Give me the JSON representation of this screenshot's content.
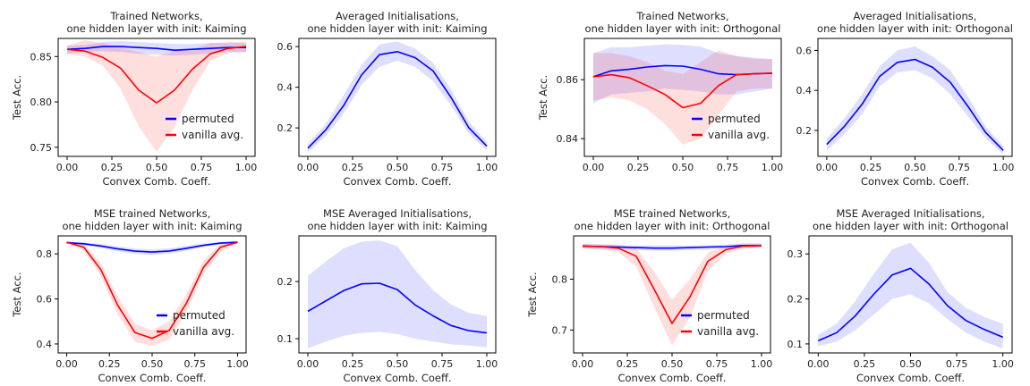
{
  "chart_data": [
    {
      "type": "line",
      "title": [
        "Trained Networks,",
        "one hidden layer with init: Kaiming"
      ],
      "xlabel": "Convex Comb. Coeff.",
      "ylabel": "Test Acc.",
      "xlim": [
        -0.05,
        1.05
      ],
      "ylim": [
        0.74,
        0.87
      ],
      "xticks": [
        0.0,
        0.25,
        0.5,
        0.75,
        1.0
      ],
      "xtick_labels": [
        "0.00",
        "0.25",
        "0.50",
        "0.75",
        "1.00"
      ],
      "yticks": [
        0.75,
        0.8,
        0.85
      ],
      "ytick_labels": [
        "0.75",
        "0.80",
        "0.85"
      ],
      "legend": "bottom-right",
      "series": [
        {
          "name": "permuted",
          "color": "#0000ff",
          "x": [
            0,
            0.1,
            0.2,
            0.3,
            0.4,
            0.5,
            0.6,
            0.7,
            0.8,
            0.9,
            1.0
          ],
          "y": [
            0.858,
            0.859,
            0.861,
            0.861,
            0.86,
            0.859,
            0.857,
            0.858,
            0.859,
            0.86,
            0.86
          ],
          "lower": [
            0.853,
            0.855,
            0.856,
            0.855,
            0.853,
            0.852,
            0.851,
            0.852,
            0.853,
            0.855,
            0.855
          ],
          "upper": [
            0.862,
            0.863,
            0.866,
            0.867,
            0.866,
            0.865,
            0.864,
            0.864,
            0.865,
            0.865,
            0.865
          ]
        },
        {
          "name": "vanilla avg.",
          "color": "#ff0000",
          "x": [
            0,
            0.1,
            0.2,
            0.3,
            0.4,
            0.5,
            0.6,
            0.7,
            0.8,
            0.9,
            1.0
          ],
          "y": [
            0.858,
            0.856,
            0.849,
            0.837,
            0.813,
            0.799,
            0.813,
            0.836,
            0.853,
            0.859,
            0.861
          ],
          "lower": [
            0.853,
            0.85,
            0.84,
            0.814,
            0.773,
            0.745,
            0.772,
            0.813,
            0.845,
            0.854,
            0.855
          ],
          "upper": [
            0.862,
            0.868,
            0.865,
            0.86,
            0.855,
            0.85,
            0.856,
            0.858,
            0.865,
            0.866,
            0.866
          ]
        }
      ]
    },
    {
      "type": "line",
      "title": [
        "Averaged Initialisations,",
        "one hidden layer  with init: Kaiming"
      ],
      "xlabel": "Convex Comb. Coeff.",
      "ylabel": "",
      "xlim": [
        -0.05,
        1.05
      ],
      "ylim": [
        0.06,
        0.64
      ],
      "xticks": [
        0.0,
        0.25,
        0.5,
        0.75,
        1.0
      ],
      "xtick_labels": [
        "0.00",
        "0.25",
        "0.50",
        "0.75",
        "1.00"
      ],
      "yticks": [
        0.2,
        0.4,
        0.6
      ],
      "ytick_labels": [
        "0.2",
        "0.4",
        "0.6"
      ],
      "legend": "none",
      "series": [
        {
          "color": "#0000ff",
          "x": [
            0,
            0.1,
            0.2,
            0.3,
            0.4,
            0.5,
            0.6,
            0.7,
            0.8,
            0.9,
            1.0
          ],
          "y": [
            0.1,
            0.19,
            0.31,
            0.46,
            0.56,
            0.575,
            0.545,
            0.48,
            0.35,
            0.2,
            0.11
          ],
          "lower": [
            0.08,
            0.16,
            0.27,
            0.41,
            0.5,
            0.53,
            0.5,
            0.43,
            0.31,
            0.17,
            0.09
          ],
          "upper": [
            0.12,
            0.22,
            0.36,
            0.51,
            0.61,
            0.625,
            0.59,
            0.52,
            0.39,
            0.23,
            0.13
          ]
        }
      ]
    },
    {
      "type": "line",
      "title": [
        "Trained Networks,",
        "one hidden layer with init: Orthogonal"
      ],
      "xlabel": "",
      "ylabel": "Test Acc.",
      "xlim": [
        -0.05,
        1.05
      ],
      "ylim": [
        0.834,
        0.874
      ],
      "xticks": [
        0.0,
        0.25,
        0.5,
        0.75,
        1.0
      ],
      "xtick_labels": [
        "0.00",
        "0.25",
        "0.50",
        "0.75",
        "1.00"
      ],
      "yticks": [
        0.84,
        0.86
      ],
      "ytick_labels": [
        "0.84",
        "0.86"
      ],
      "legend": "bottom-right",
      "series": [
        {
          "name": "permuted",
          "color": "#0000ff",
          "x": [
            0,
            0.1,
            0.2,
            0.3,
            0.4,
            0.5,
            0.6,
            0.7,
            0.8,
            0.9,
            1.0
          ],
          "y": [
            0.861,
            0.863,
            0.8635,
            0.8643,
            0.8648,
            0.8646,
            0.8635,
            0.862,
            0.8617,
            0.862,
            0.8622
          ],
          "lower": [
            0.852,
            0.855,
            0.8555,
            0.856,
            0.857,
            0.8565,
            0.856,
            0.855,
            0.855,
            0.856,
            0.857
          ],
          "upper": [
            0.869,
            0.871,
            0.871,
            0.8715,
            0.872,
            0.8718,
            0.8712,
            0.869,
            0.868,
            0.8675,
            0.867
          ]
        },
        {
          "name": "vanilla avg.",
          "color": "#ff0000",
          "x": [
            0,
            0.1,
            0.2,
            0.3,
            0.4,
            0.5,
            0.6,
            0.7,
            0.8,
            0.9,
            1.0
          ],
          "y": [
            0.861,
            0.8617,
            0.8607,
            0.858,
            0.855,
            0.8505,
            0.852,
            0.858,
            0.8617,
            0.862,
            0.8622
          ],
          "lower": [
            0.853,
            0.854,
            0.853,
            0.85,
            0.845,
            0.838,
            0.84,
            0.848,
            0.856,
            0.857,
            0.857
          ],
          "upper": [
            0.869,
            0.869,
            0.868,
            0.866,
            0.863,
            0.862,
            0.866,
            0.87,
            0.868,
            0.867,
            0.867
          ]
        }
      ]
    },
    {
      "type": "line",
      "title": [
        "Averaged Initialisations,",
        "one hidden layer  with init: Orthogonal"
      ],
      "xlabel": "Convex Comb. Coeff.",
      "ylabel": "",
      "xlim": [
        -0.05,
        1.05
      ],
      "ylim": [
        0.07,
        0.66
      ],
      "xticks": [
        0.0,
        0.25,
        0.5,
        0.75,
        1.0
      ],
      "xtick_labels": [
        "0.00",
        "0.25",
        "0.50",
        "0.75",
        "1.00"
      ],
      "yticks": [
        0.2,
        0.4,
        0.6
      ],
      "ytick_labels": [
        "0.2",
        "0.4",
        "0.6"
      ],
      "legend": "none",
      "series": [
        {
          "color": "#0000ff",
          "x": [
            0,
            0.1,
            0.2,
            0.3,
            0.4,
            0.5,
            0.6,
            0.7,
            0.8,
            0.9,
            1.0
          ],
          "y": [
            0.13,
            0.22,
            0.33,
            0.47,
            0.54,
            0.555,
            0.515,
            0.44,
            0.32,
            0.19,
            0.1
          ],
          "lower": [
            0.1,
            0.18,
            0.28,
            0.42,
            0.49,
            0.5,
            0.46,
            0.38,
            0.27,
            0.16,
            0.08
          ],
          "upper": [
            0.16,
            0.26,
            0.38,
            0.52,
            0.6,
            0.62,
            0.57,
            0.5,
            0.37,
            0.22,
            0.12
          ]
        }
      ]
    },
    {
      "type": "line",
      "title": [
        "MSE trained Networks,",
        "one hidden layer with init: Kaiming"
      ],
      "xlabel": "Convex Comb. Coeff.",
      "ylabel": "Test Acc.",
      "xlim": [
        -0.05,
        1.05
      ],
      "ylim": [
        0.36,
        0.88
      ],
      "xticks": [
        0.0,
        0.25,
        0.5,
        0.75,
        1.0
      ],
      "xtick_labels": [
        "0.00",
        "0.25",
        "0.50",
        "0.75",
        "1.00"
      ],
      "yticks": [
        0.4,
        0.6,
        0.8
      ],
      "ytick_labels": [
        "0.4",
        "0.6",
        "0.8"
      ],
      "legend": "bottom-right",
      "series": [
        {
          "name": "permuted",
          "color": "#0000ff",
          "x": [
            0,
            0.1,
            0.2,
            0.3,
            0.4,
            0.5,
            0.6,
            0.7,
            0.8,
            0.9,
            1.0
          ],
          "y": [
            0.85,
            0.845,
            0.835,
            0.822,
            0.812,
            0.808,
            0.813,
            0.825,
            0.838,
            0.848,
            0.852
          ],
          "lower": [
            0.845,
            0.838,
            0.826,
            0.811,
            0.8,
            0.796,
            0.801,
            0.814,
            0.83,
            0.842,
            0.846
          ],
          "upper": [
            0.855,
            0.852,
            0.844,
            0.833,
            0.824,
            0.82,
            0.825,
            0.836,
            0.846,
            0.854,
            0.857
          ]
        },
        {
          "name": "vanilla avg.",
          "color": "#ff0000",
          "x": [
            0,
            0.1,
            0.2,
            0.3,
            0.4,
            0.5,
            0.6,
            0.7,
            0.8,
            0.9,
            1.0
          ],
          "y": [
            0.852,
            0.83,
            0.73,
            0.57,
            0.45,
            0.425,
            0.46,
            0.58,
            0.74,
            0.83,
            0.852
          ],
          "lower": [
            0.845,
            0.815,
            0.7,
            0.53,
            0.41,
            0.39,
            0.42,
            0.54,
            0.71,
            0.81,
            0.845
          ],
          "upper": [
            0.858,
            0.845,
            0.76,
            0.61,
            0.49,
            0.46,
            0.5,
            0.62,
            0.77,
            0.845,
            0.858
          ]
        }
      ]
    },
    {
      "type": "line",
      "title": [
        "MSE Averaged Initialisations,",
        "one hidden layer  with init: Kaiming"
      ],
      "xlabel": "Convex Comb. Coeff.",
      "ylabel": "",
      "xlim": [
        -0.05,
        1.05
      ],
      "ylim": [
        0.075,
        0.28
      ],
      "xticks": [
        0.0,
        0.25,
        0.5,
        0.75,
        1.0
      ],
      "xtick_labels": [
        "0.00",
        "0.25",
        "0.50",
        "0.75",
        "1.00"
      ],
      "yticks": [
        0.1,
        0.2
      ],
      "ytick_labels": [
        "0.1",
        "0.2"
      ],
      "legend": "none",
      "series": [
        {
          "color": "#0000ff",
          "x": [
            0,
            0.1,
            0.2,
            0.3,
            0.4,
            0.5,
            0.6,
            0.7,
            0.8,
            0.9,
            1.0
          ],
          "y": [
            0.148,
            0.166,
            0.184,
            0.196,
            0.197,
            0.186,
            0.159,
            0.14,
            0.123,
            0.114,
            0.11
          ],
          "lower": [
            0.083,
            0.095,
            0.105,
            0.11,
            0.112,
            0.108,
            0.1,
            0.095,
            0.09,
            0.088,
            0.085
          ],
          "upper": [
            0.21,
            0.235,
            0.258,
            0.27,
            0.272,
            0.262,
            0.22,
            0.185,
            0.16,
            0.145,
            0.14
          ]
        }
      ]
    },
    {
      "type": "line",
      "title": [
        "MSE trained Networks,",
        "one hidden layer with init: Orthogonal"
      ],
      "xlabel": "Convex Comb. Coeff.",
      "ylabel": "Test Acc.",
      "xlim": [
        -0.05,
        1.05
      ],
      "ylim": [
        0.655,
        0.885
      ],
      "xticks": [
        0.0,
        0.25,
        0.5,
        0.75,
        1.0
      ],
      "xtick_labels": [
        "0.00",
        "0.25",
        "0.50",
        "0.75",
        "1.00"
      ],
      "yticks": [
        0.7,
        0.8
      ],
      "ytick_labels": [
        "0.7",
        "0.8"
      ],
      "legend": "bottom-right",
      "series": [
        {
          "name": "permuted",
          "color": "#0000ff",
          "x": [
            0,
            0.1,
            0.2,
            0.3,
            0.4,
            0.5,
            0.6,
            0.7,
            0.8,
            0.9,
            1.0
          ],
          "y": [
            0.865,
            0.864,
            0.863,
            0.862,
            0.861,
            0.861,
            0.862,
            0.863,
            0.864,
            0.866,
            0.866
          ],
          "lower": [
            0.861,
            0.86,
            0.858,
            0.857,
            0.856,
            0.856,
            0.857,
            0.858,
            0.86,
            0.862,
            0.862
          ],
          "upper": [
            0.869,
            0.868,
            0.867,
            0.866,
            0.866,
            0.866,
            0.866,
            0.867,
            0.868,
            0.87,
            0.87
          ]
        },
        {
          "name": "vanilla avg.",
          "color": "#ff0000",
          "x": [
            0,
            0.1,
            0.2,
            0.3,
            0.4,
            0.5,
            0.6,
            0.7,
            0.8,
            0.9,
            1.0
          ],
          "y": [
            0.865,
            0.864,
            0.861,
            0.845,
            0.78,
            0.713,
            0.765,
            0.835,
            0.858,
            0.865,
            0.866
          ],
          "lower": [
            0.86,
            0.858,
            0.853,
            0.825,
            0.745,
            0.67,
            0.725,
            0.815,
            0.85,
            0.86,
            0.862
          ],
          "upper": [
            0.87,
            0.869,
            0.868,
            0.86,
            0.815,
            0.76,
            0.8,
            0.852,
            0.865,
            0.87,
            0.87
          ]
        }
      ]
    },
    {
      "type": "line",
      "title": [
        "MSE Averaged Initialisations,",
        "one hidden layer  with init: Orthogonal"
      ],
      "xlabel": "Convex Comb. Coeff.",
      "ylabel": "",
      "xlim": [
        -0.05,
        1.05
      ],
      "ylim": [
        0.08,
        0.34
      ],
      "xticks": [
        0.0,
        0.25,
        0.5,
        0.75,
        1.0
      ],
      "xtick_labels": [
        "0.00",
        "0.25",
        "0.50",
        "0.75",
        "1.00"
      ],
      "yticks": [
        0.1,
        0.2,
        0.3
      ],
      "ytick_labels": [
        "0.1",
        "0.2",
        "0.3"
      ],
      "legend": "none",
      "series": [
        {
          "color": "#0000ff",
          "x": [
            0,
            0.1,
            0.2,
            0.3,
            0.4,
            0.5,
            0.6,
            0.7,
            0.8,
            0.9,
            1.0
          ],
          "y": [
            0.107,
            0.125,
            0.162,
            0.21,
            0.253,
            0.268,
            0.233,
            0.185,
            0.152,
            0.132,
            0.115
          ],
          "lower": [
            0.095,
            0.105,
            0.13,
            0.165,
            0.2,
            0.21,
            0.19,
            0.155,
            0.125,
            0.105,
            0.09
          ],
          "upper": [
            0.12,
            0.145,
            0.195,
            0.255,
            0.31,
            0.325,
            0.28,
            0.215,
            0.18,
            0.16,
            0.145
          ]
        }
      ]
    }
  ]
}
